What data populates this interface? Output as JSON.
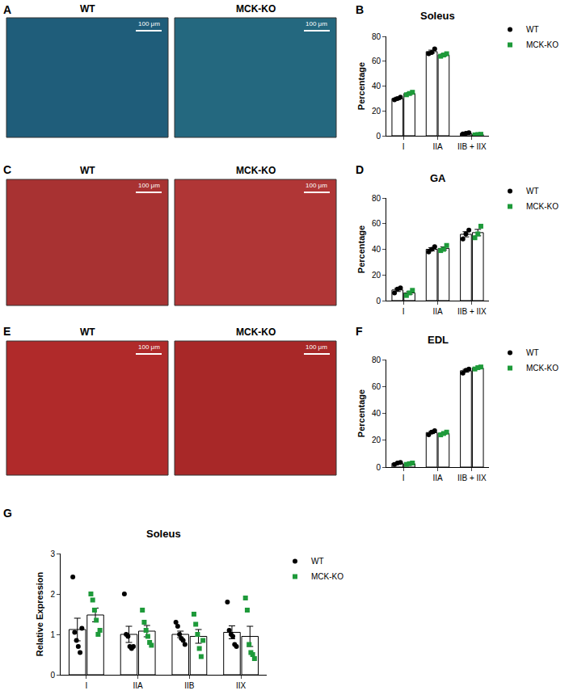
{
  "images": [
    {
      "panel": "A",
      "labels": [
        "WT",
        "MCK-KO"
      ],
      "scale_bar": "100 μm"
    },
    {
      "panel": "C",
      "labels": [
        "WT",
        "MCK-KO"
      ],
      "scale_bar": "100 μm"
    },
    {
      "panel": "E",
      "labels": [
        "WT",
        "MCK-KO"
      ],
      "scale_bar": "100 μm"
    }
  ],
  "chart_data": [
    {
      "type": "bar",
      "panel": "B",
      "title": "Soleus",
      "y_label": "Percentage",
      "categories": [
        "I",
        "IIA",
        "IIB + IIX"
      ],
      "ylim": [
        0,
        80
      ],
      "yticks": [
        0,
        20,
        40,
        60,
        80
      ],
      "series": [
        {
          "name": "WT",
          "color": "#000000",
          "marker": "circle",
          "values": [
            30,
            67.7,
            2
          ],
          "errors": [
            1,
            1.2,
            0.3
          ],
          "points": [
            [
              29,
              30,
              31
            ],
            [
              66,
              67,
              70
            ],
            [
              1.5,
              2,
              2.5
            ]
          ]
        },
        {
          "name": "MCK-KO",
          "color": "#1e9a3a",
          "marker": "square",
          "values": [
            34,
            65,
            1
          ],
          "errors": [
            0.8,
            0.8,
            0.2
          ],
          "points": [
            [
              33,
              34,
              35
            ],
            [
              64,
              65,
              66
            ],
            [
              0.7,
              1,
              1.2
            ]
          ]
        }
      ]
    },
    {
      "type": "bar",
      "panel": "D",
      "title": "GA",
      "y_label": "Percentage",
      "categories": [
        "I",
        "IIA",
        "IIB + IIX"
      ],
      "ylim": [
        0,
        80
      ],
      "yticks": [
        0,
        20,
        40,
        60,
        80
      ],
      "series": [
        {
          "name": "WT",
          "color": "#000000",
          "marker": "circle",
          "values": [
            8.3,
            40,
            51.7
          ],
          "errors": [
            1.2,
            1.2,
            2
          ],
          "points": [
            [
              6,
              9,
              10
            ],
            [
              38,
              40,
              42
            ],
            [
              48,
              52,
              55
            ]
          ]
        },
        {
          "name": "MCK-KO",
          "color": "#1e9a3a",
          "marker": "square",
          "values": [
            6,
            40.7,
            53
          ],
          "errors": [
            1.1,
            1.2,
            2.5
          ],
          "points": [
            [
              4,
              6,
              8
            ],
            [
              39,
              40,
              43
            ],
            [
              49,
              52,
              58
            ]
          ]
        }
      ]
    },
    {
      "type": "bar",
      "panel": "F",
      "title": "EDL",
      "y_label": "Percentage",
      "categories": [
        "I",
        "IIA",
        "IIB + IIX"
      ],
      "ylim": [
        0,
        80
      ],
      "yticks": [
        0,
        20,
        40,
        60,
        80
      ],
      "series": [
        {
          "name": "WT",
          "color": "#000000",
          "marker": "circle",
          "values": [
            2.8,
            25.7,
            71.7
          ],
          "errors": [
            0.5,
            0.8,
            1
          ],
          "points": [
            [
              2,
              3,
              3.5
            ],
            [
              24,
              26,
              27
            ],
            [
              70,
              72,
              73
            ]
          ]
        },
        {
          "name": "MCK-KO",
          "color": "#1e9a3a",
          "marker": "square",
          "values": [
            2.5,
            25,
            73.8
          ],
          "errors": [
            0.3,
            0.6,
            0.5
          ],
          "points": [
            [
              2,
              2.5,
              3
            ],
            [
              24,
              25,
              26
            ],
            [
              73,
              74,
              74.5
            ]
          ]
        }
      ]
    },
    {
      "type": "bar",
      "panel": "G",
      "title": "Soleus",
      "y_label": "Relative Expression",
      "categories": [
        "I",
        "IIA",
        "IIB",
        "IIX"
      ],
      "ylim": [
        0,
        3
      ],
      "yticks": [
        0,
        1,
        2,
        3
      ],
      "series": [
        {
          "name": "WT",
          "color": "#000000",
          "marker": "circle",
          "values": [
            1.12,
            1.0,
            1.0,
            1.05
          ],
          "errors": [
            0.28,
            0.2,
            0.08,
            0.16
          ],
          "points": [
            [
              2.42,
              1.05,
              0.85,
              0.7,
              0.55,
              1.15
            ],
            [
              2.0,
              1.0,
              0.95,
              0.7,
              0.65,
              0.7
            ],
            [
              1.3,
              1.2,
              1.0,
              0.9,
              0.85,
              0.75
            ],
            [
              1.8,
              1.1,
              1.0,
              0.95,
              0.75,
              0.7
            ]
          ]
        },
        {
          "name": "MCK-KO",
          "color": "#1e9a3a",
          "marker": "square",
          "values": [
            1.48,
            1.08,
            0.95,
            0.95
          ],
          "errors": [
            0.17,
            0.14,
            0.17,
            0.25
          ],
          "points": [
            [
              2.0,
              1.85,
              1.6,
              1.35,
              1.0,
              1.1
            ],
            [
              1.6,
              1.3,
              1.1,
              0.95,
              0.8,
              0.73
            ],
            [
              1.5,
              1.25,
              1.0,
              0.65,
              0.45,
              0.85
            ],
            [
              1.9,
              1.6,
              0.75,
              0.55,
              0.5,
              0.4
            ]
          ]
        }
      ]
    }
  ]
}
